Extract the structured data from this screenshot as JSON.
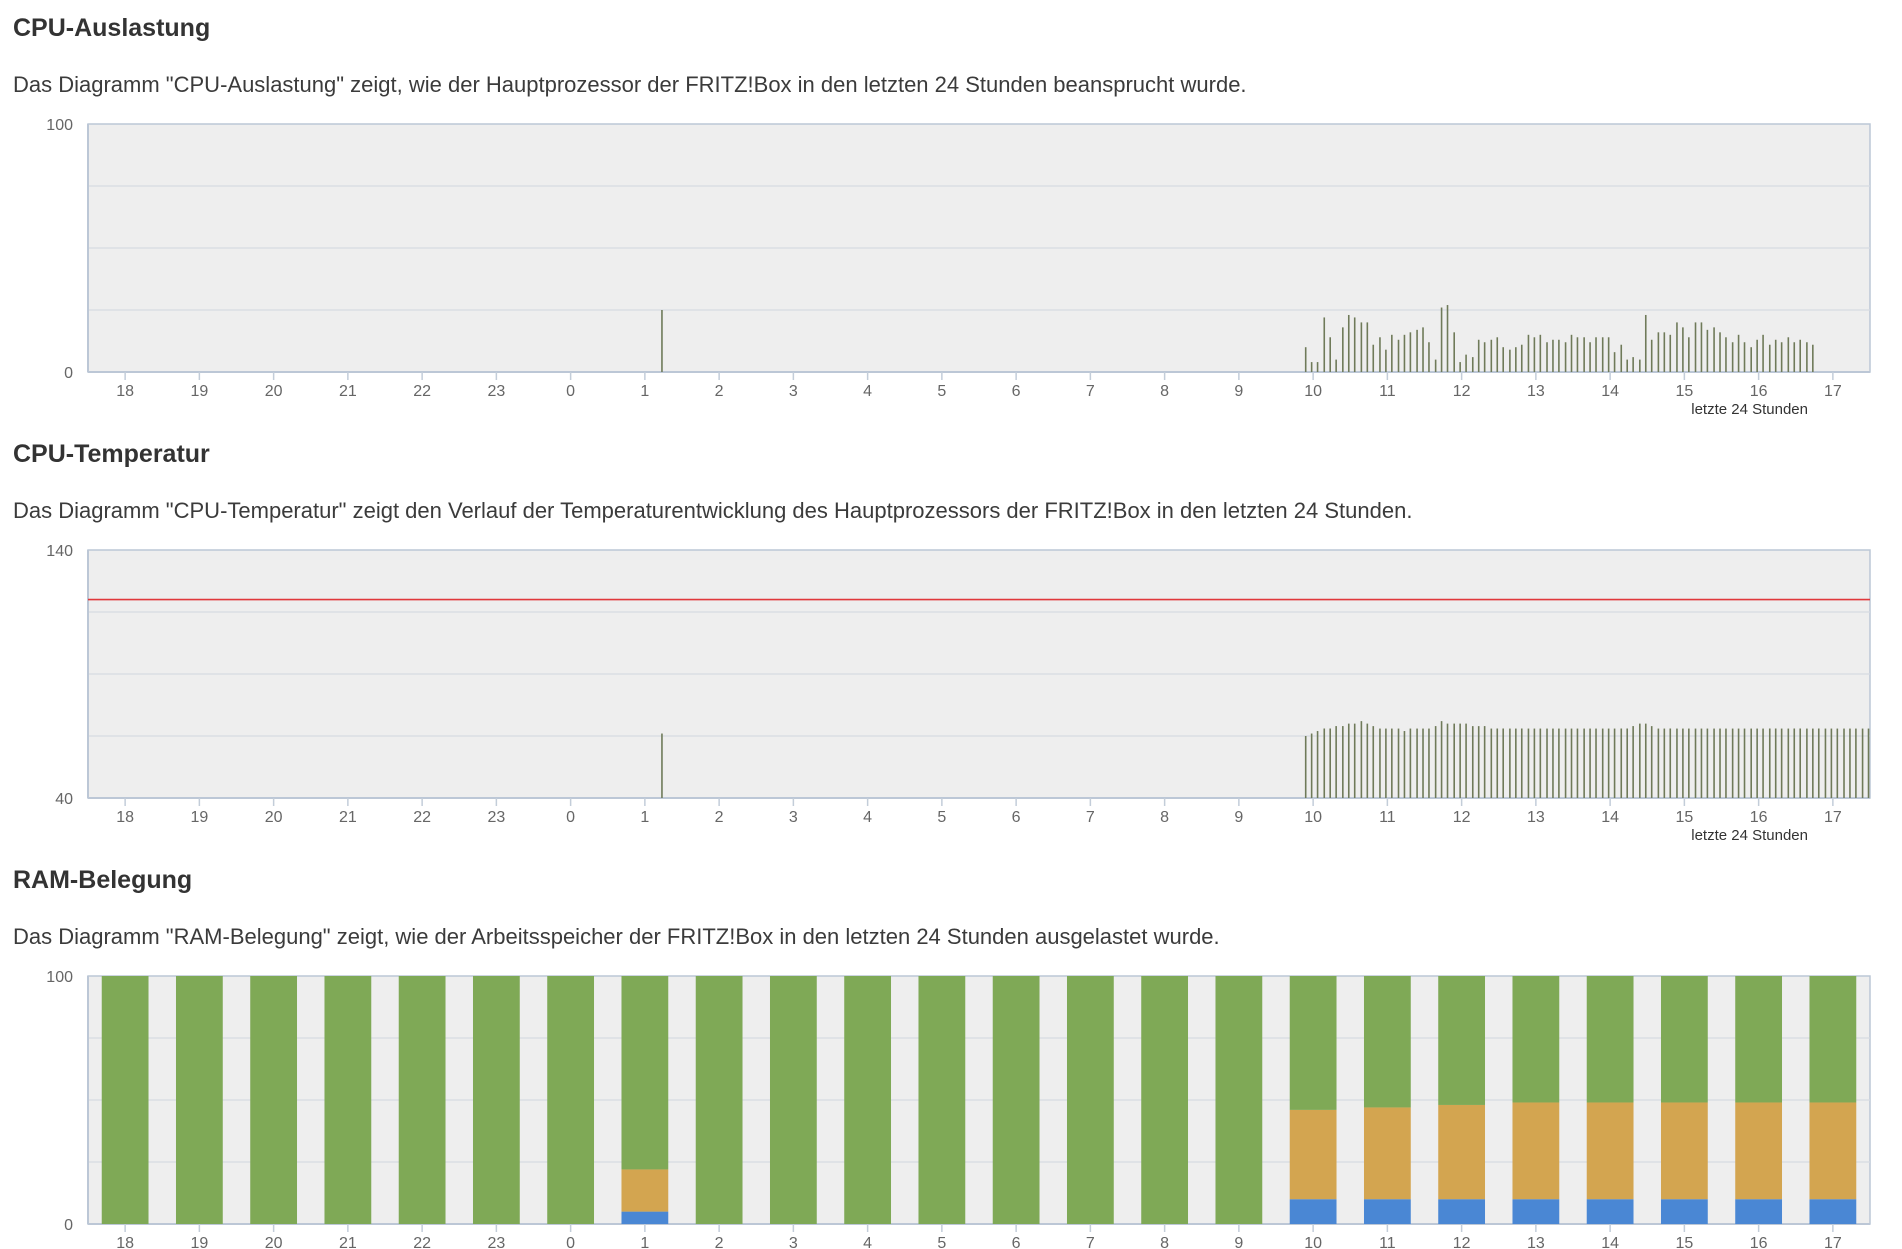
{
  "colors": {
    "plot_bg": "#eeeeee",
    "grid": "#d6dae2",
    "axis": "#bcc7d6",
    "tick": "#c3cdd9",
    "spike": "#6f7a59",
    "limit_line": "#e0383b",
    "ram_green": "#7fa956",
    "ram_orange": "#d3a550",
    "ram_blue": "#4a87d4"
  },
  "sections": {
    "cpu_load": {
      "title": "CPU-Auslastung",
      "description": "Das Diagramm \"CPU-Auslastung\" zeigt, wie der Hauptprozessor der FRITZ!Box in den letzten 24 Stunden beansprucht wurde."
    },
    "cpu_temp": {
      "title": "CPU-Temperatur",
      "description": "Das Diagramm \"CPU-Temperatur\" zeigt den Verlauf der Temperaturentwicklung des Hauptprozessors der FRITZ!Box in den letzten 24 Stunden."
    },
    "ram": {
      "title": "RAM-Belegung",
      "description": "Das Diagramm \"RAM-Belegung\" zeigt, wie der Arbeitsspeicher der FRITZ!Box in den letzten 24 Stunden ausgelastet wurde."
    }
  },
  "chart_data": [
    {
      "id": "cpu_load",
      "type": "bar",
      "title": "CPU-Auslastung",
      "xlabel": "letzte 24 Stunden",
      "ylabel": "",
      "ylim": [
        0,
        100
      ],
      "y_tick_labels": [
        "100",
        "0"
      ],
      "gridlines": [
        25,
        50,
        75
      ],
      "categories": [
        "18",
        "19",
        "20",
        "21",
        "22",
        "23",
        "0",
        "1",
        "2",
        "3",
        "4",
        "5",
        "6",
        "7",
        "8",
        "9",
        "10",
        "11",
        "12",
        "13",
        "14",
        "15",
        "16",
        "17"
      ],
      "x_start_hour": 17.5,
      "x_end_hour": 41.5,
      "spikes": [
        {
          "h": 25.23,
          "v": 25
        },
        {
          "h": 33.9,
          "v": 10
        },
        {
          "h": 33.98,
          "v": 4
        },
        {
          "h": 34.06,
          "v": 4
        },
        {
          "h": 34.15,
          "v": 22
        },
        {
          "h": 34.23,
          "v": 14
        },
        {
          "h": 34.31,
          "v": 5
        },
        {
          "h": 34.4,
          "v": 18
        },
        {
          "h": 34.48,
          "v": 23
        },
        {
          "h": 34.56,
          "v": 22
        },
        {
          "h": 34.65,
          "v": 20
        },
        {
          "h": 34.73,
          "v": 20
        },
        {
          "h": 34.81,
          "v": 11
        },
        {
          "h": 34.9,
          "v": 14
        },
        {
          "h": 34.98,
          "v": 9
        },
        {
          "h": 35.06,
          "v": 15
        },
        {
          "h": 35.15,
          "v": 13
        },
        {
          "h": 35.23,
          "v": 15
        },
        {
          "h": 35.31,
          "v": 16
        },
        {
          "h": 35.4,
          "v": 17
        },
        {
          "h": 35.48,
          "v": 18
        },
        {
          "h": 35.56,
          "v": 12
        },
        {
          "h": 35.65,
          "v": 5
        },
        {
          "h": 35.73,
          "v": 26
        },
        {
          "h": 35.81,
          "v": 27
        },
        {
          "h": 35.9,
          "v": 16
        },
        {
          "h": 35.98,
          "v": 4
        },
        {
          "h": 36.06,
          "v": 7
        },
        {
          "h": 36.15,
          "v": 6
        },
        {
          "h": 36.23,
          "v": 13
        },
        {
          "h": 36.31,
          "v": 12
        },
        {
          "h": 36.4,
          "v": 13
        },
        {
          "h": 36.48,
          "v": 14
        },
        {
          "h": 36.56,
          "v": 10
        },
        {
          "h": 36.65,
          "v": 9
        },
        {
          "h": 36.73,
          "v": 10
        },
        {
          "h": 36.81,
          "v": 11
        },
        {
          "h": 36.9,
          "v": 15
        },
        {
          "h": 36.98,
          "v": 14
        },
        {
          "h": 37.06,
          "v": 15
        },
        {
          "h": 37.15,
          "v": 12
        },
        {
          "h": 37.23,
          "v": 13
        },
        {
          "h": 37.31,
          "v": 13
        },
        {
          "h": 37.4,
          "v": 12
        },
        {
          "h": 37.48,
          "v": 15
        },
        {
          "h": 37.56,
          "v": 14
        },
        {
          "h": 37.65,
          "v": 14
        },
        {
          "h": 37.73,
          "v": 12
        },
        {
          "h": 37.81,
          "v": 14
        },
        {
          "h": 37.9,
          "v": 14
        },
        {
          "h": 37.98,
          "v": 14
        },
        {
          "h": 38.06,
          "v": 8
        },
        {
          "h": 38.15,
          "v": 11
        },
        {
          "h": 38.23,
          "v": 5
        },
        {
          "h": 38.31,
          "v": 6
        },
        {
          "h": 38.4,
          "v": 5
        },
        {
          "h": 38.48,
          "v": 23
        },
        {
          "h": 38.56,
          "v": 13
        },
        {
          "h": 38.65,
          "v": 16
        },
        {
          "h": 38.73,
          "v": 16
        },
        {
          "h": 38.81,
          "v": 15
        },
        {
          "h": 38.9,
          "v": 20
        },
        {
          "h": 38.98,
          "v": 18
        },
        {
          "h": 39.06,
          "v": 14
        },
        {
          "h": 39.15,
          "v": 20
        },
        {
          "h": 39.23,
          "v": 20
        },
        {
          "h": 39.31,
          "v": 17
        },
        {
          "h": 39.4,
          "v": 18
        },
        {
          "h": 39.48,
          "v": 16
        },
        {
          "h": 39.56,
          "v": 14
        },
        {
          "h": 39.65,
          "v": 12
        },
        {
          "h": 39.73,
          "v": 15
        },
        {
          "h": 39.81,
          "v": 12
        },
        {
          "h": 39.9,
          "v": 10
        },
        {
          "h": 39.98,
          "v": 13
        },
        {
          "h": 40.06,
          "v": 15
        },
        {
          "h": 40.15,
          "v": 11
        },
        {
          "h": 40.23,
          "v": 13
        },
        {
          "h": 40.31,
          "v": 12
        },
        {
          "h": 40.4,
          "v": 14
        },
        {
          "h": 40.48,
          "v": 12
        },
        {
          "h": 40.56,
          "v": 13
        },
        {
          "h": 40.65,
          "v": 12
        },
        {
          "h": 40.73,
          "v": 11
        }
      ]
    },
    {
      "id": "cpu_temp",
      "type": "bar",
      "title": "CPU-Temperatur",
      "xlabel": "letzte 24 Stunden",
      "ylabel": "",
      "ylim": [
        40,
        140
      ],
      "y_tick_labels": [
        "140",
        "40"
      ],
      "gridlines": [
        65,
        90,
        115
      ],
      "limit_line": 120,
      "categories": [
        "18",
        "19",
        "20",
        "21",
        "22",
        "23",
        "0",
        "1",
        "2",
        "3",
        "4",
        "5",
        "6",
        "7",
        "8",
        "9",
        "10",
        "11",
        "12",
        "13",
        "14",
        "15",
        "16",
        "17"
      ],
      "x_start_hour": 17.5,
      "x_end_hour": 41.5,
      "spikes": [
        {
          "h": 25.23,
          "v": 66
        },
        {
          "h": 33.9,
          "v": 65
        },
        {
          "h": 33.98,
          "v": 66
        },
        {
          "h": 34.06,
          "v": 67
        },
        {
          "h": 34.15,
          "v": 68
        },
        {
          "h": 34.23,
          "v": 68
        },
        {
          "h": 34.31,
          "v": 69
        },
        {
          "h": 34.4,
          "v": 69
        },
        {
          "h": 34.48,
          "v": 70
        },
        {
          "h": 34.56,
          "v": 70
        },
        {
          "h": 34.65,
          "v": 71
        },
        {
          "h": 34.73,
          "v": 70
        },
        {
          "h": 34.81,
          "v": 69
        },
        {
          "h": 34.9,
          "v": 68
        },
        {
          "h": 34.98,
          "v": 68
        },
        {
          "h": 35.06,
          "v": 68
        },
        {
          "h": 35.15,
          "v": 68
        },
        {
          "h": 35.23,
          "v": 67
        },
        {
          "h": 35.31,
          "v": 68
        },
        {
          "h": 35.4,
          "v": 68
        },
        {
          "h": 35.48,
          "v": 68
        },
        {
          "h": 35.56,
          "v": 68
        },
        {
          "h": 35.65,
          "v": 69
        },
        {
          "h": 35.73,
          "v": 71
        },
        {
          "h": 35.81,
          "v": 70
        },
        {
          "h": 35.9,
          "v": 70
        },
        {
          "h": 35.98,
          "v": 70
        },
        {
          "h": 36.06,
          "v": 70
        },
        {
          "h": 36.15,
          "v": 69
        },
        {
          "h": 36.23,
          "v": 69
        },
        {
          "h": 36.31,
          "v": 69
        },
        {
          "h": 36.4,
          "v": 68
        },
        {
          "h": 36.48,
          "v": 68
        },
        {
          "h": 36.56,
          "v": 68
        },
        {
          "h": 36.65,
          "v": 68
        },
        {
          "h": 36.73,
          "v": 68
        },
        {
          "h": 36.81,
          "v": 68
        },
        {
          "h": 36.9,
          "v": 68
        },
        {
          "h": 36.98,
          "v": 68
        },
        {
          "h": 37.06,
          "v": 68
        },
        {
          "h": 37.15,
          "v": 68
        },
        {
          "h": 37.23,
          "v": 68
        },
        {
          "h": 37.31,
          "v": 68
        },
        {
          "h": 37.4,
          "v": 68
        },
        {
          "h": 37.48,
          "v": 68
        },
        {
          "h": 37.56,
          "v": 68
        },
        {
          "h": 37.65,
          "v": 68
        },
        {
          "h": 37.73,
          "v": 68
        },
        {
          "h": 37.81,
          "v": 68
        },
        {
          "h": 37.9,
          "v": 68
        },
        {
          "h": 37.98,
          "v": 68
        },
        {
          "h": 38.06,
          "v": 68
        },
        {
          "h": 38.15,
          "v": 68
        },
        {
          "h": 38.23,
          "v": 68
        },
        {
          "h": 38.31,
          "v": 69
        },
        {
          "h": 38.4,
          "v": 70
        },
        {
          "h": 38.48,
          "v": 70
        },
        {
          "h": 38.56,
          "v": 69
        },
        {
          "h": 38.65,
          "v": 68
        },
        {
          "h": 38.73,
          "v": 68
        },
        {
          "h": 38.81,
          "v": 68
        },
        {
          "h": 38.9,
          "v": 68
        },
        {
          "h": 38.98,
          "v": 68
        },
        {
          "h": 39.06,
          "v": 68
        },
        {
          "h": 39.15,
          "v": 68
        },
        {
          "h": 39.23,
          "v": 68
        },
        {
          "h": 39.31,
          "v": 68
        },
        {
          "h": 39.4,
          "v": 68
        },
        {
          "h": 39.48,
          "v": 68
        },
        {
          "h": 39.56,
          "v": 68
        },
        {
          "h": 39.65,
          "v": 68
        },
        {
          "h": 39.73,
          "v": 68
        },
        {
          "h": 39.81,
          "v": 68
        },
        {
          "h": 39.9,
          "v": 68
        },
        {
          "h": 39.98,
          "v": 68
        },
        {
          "h": 40.06,
          "v": 68
        },
        {
          "h": 40.15,
          "v": 68
        },
        {
          "h": 40.23,
          "v": 68
        },
        {
          "h": 40.31,
          "v": 68
        },
        {
          "h": 40.4,
          "v": 68
        },
        {
          "h": 40.48,
          "v": 68
        },
        {
          "h": 40.56,
          "v": 68
        },
        {
          "h": 40.65,
          "v": 68
        },
        {
          "h": 40.73,
          "v": 68
        },
        {
          "h": 40.81,
          "v": 68
        },
        {
          "h": 40.9,
          "v": 68
        },
        {
          "h": 40.98,
          "v": 68
        },
        {
          "h": 41.06,
          "v": 68
        },
        {
          "h": 41.15,
          "v": 68
        },
        {
          "h": 41.23,
          "v": 68
        },
        {
          "h": 41.31,
          "v": 68
        },
        {
          "h": 41.4,
          "v": 68
        },
        {
          "h": 41.48,
          "v": 68
        }
      ]
    },
    {
      "id": "ram",
      "type": "bar",
      "stacked": true,
      "title": "RAM-Belegung",
      "xlabel": "",
      "ylabel": "",
      "ylim": [
        0,
        100
      ],
      "y_tick_labels": [
        "100",
        "0"
      ],
      "gridlines": [
        25,
        50,
        75
      ],
      "categories": [
        "18",
        "19",
        "20",
        "21",
        "22",
        "23",
        "0",
        "1",
        "2",
        "3",
        "4",
        "5",
        "6",
        "7",
        "8",
        "9",
        "10",
        "11",
        "12",
        "13",
        "14",
        "15",
        "16",
        "17"
      ],
      "series": [
        {
          "name": "blue",
          "values": [
            0,
            0,
            0,
            0,
            0,
            0,
            0,
            5,
            0,
            0,
            0,
            0,
            0,
            0,
            0,
            0,
            10,
            10,
            10,
            10,
            10,
            10,
            10,
            10
          ]
        },
        {
          "name": "orange",
          "values": [
            0,
            0,
            0,
            0,
            0,
            0,
            0,
            17,
            0,
            0,
            0,
            0,
            0,
            0,
            0,
            0,
            36,
            37,
            38,
            39,
            39,
            39,
            39,
            39
          ]
        },
        {
          "name": "green",
          "values": [
            100,
            100,
            100,
            100,
            100,
            100,
            100,
            78,
            100,
            100,
            100,
            100,
            100,
            100,
            100,
            100,
            54,
            53,
            52,
            51,
            51,
            51,
            51,
            51
          ]
        }
      ]
    }
  ]
}
